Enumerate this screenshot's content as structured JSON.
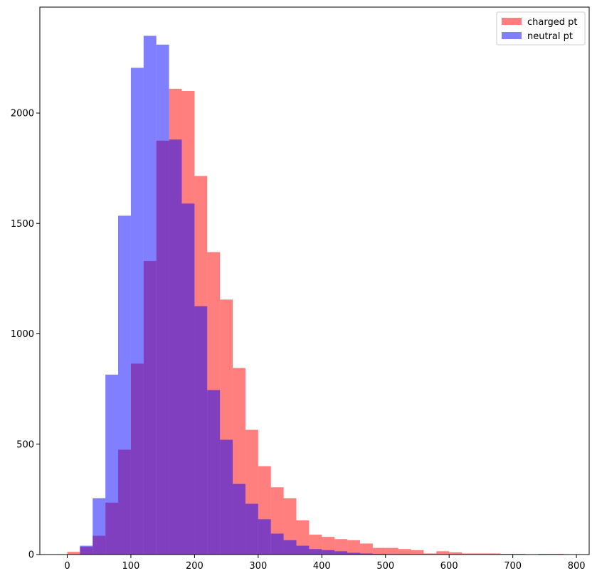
{
  "chart_data": {
    "type": "bar",
    "subtype": "overlaid-histogram",
    "title": "",
    "xlabel": "",
    "ylabel": "",
    "xlim": [
      -43,
      820
    ],
    "ylim": [
      0,
      2480
    ],
    "xticks": [
      0,
      100,
      200,
      300,
      400,
      500,
      600,
      700,
      800
    ],
    "yticks": [
      0,
      500,
      1000,
      1500,
      2000
    ],
    "grid": false,
    "legend_position": "upper right",
    "bin_width": 20,
    "series": [
      {
        "name": "charged pt",
        "color": "#ff8080",
        "bins": [
          {
            "x0": 0,
            "count": 12
          },
          {
            "x0": 20,
            "count": 35
          },
          {
            "x0": 40,
            "count": 85
          },
          {
            "x0": 60,
            "count": 235
          },
          {
            "x0": 80,
            "count": 475
          },
          {
            "x0": 100,
            "count": 865
          },
          {
            "x0": 120,
            "count": 1330
          },
          {
            "x0": 140,
            "count": 1875
          },
          {
            "x0": 160,
            "count": 2110
          },
          {
            "x0": 180,
            "count": 2100
          },
          {
            "x0": 200,
            "count": 1715
          },
          {
            "x0": 220,
            "count": 1370
          },
          {
            "x0": 240,
            "count": 1155
          },
          {
            "x0": 260,
            "count": 845
          },
          {
            "x0": 280,
            "count": 565
          },
          {
            "x0": 300,
            "count": 400
          },
          {
            "x0": 320,
            "count": 305
          },
          {
            "x0": 340,
            "count": 255
          },
          {
            "x0": 360,
            "count": 155
          },
          {
            "x0": 380,
            "count": 90
          },
          {
            "x0": 400,
            "count": 80
          },
          {
            "x0": 420,
            "count": 70
          },
          {
            "x0": 440,
            "count": 65
          },
          {
            "x0": 460,
            "count": 50
          },
          {
            "x0": 480,
            "count": 30
          },
          {
            "x0": 500,
            "count": 30
          },
          {
            "x0": 520,
            "count": 25
          },
          {
            "x0": 540,
            "count": 20
          },
          {
            "x0": 560,
            "count": 5
          },
          {
            "x0": 580,
            "count": 15
          },
          {
            "x0": 600,
            "count": 10
          },
          {
            "x0": 620,
            "count": 5
          },
          {
            "x0": 640,
            "count": 5
          },
          {
            "x0": 660,
            "count": 5
          },
          {
            "x0": 680,
            "count": 3
          },
          {
            "x0": 700,
            "count": 3
          },
          {
            "x0": 720,
            "count": 0
          },
          {
            "x0": 740,
            "count": 3
          },
          {
            "x0": 760,
            "count": 3
          }
        ]
      },
      {
        "name": "neutral pt",
        "color": "#8080ff",
        "bins": [
          {
            "x0": 0,
            "count": 0
          },
          {
            "x0": 20,
            "count": 40
          },
          {
            "x0": 40,
            "count": 255
          },
          {
            "x0": 60,
            "count": 815
          },
          {
            "x0": 80,
            "count": 1535
          },
          {
            "x0": 100,
            "count": 2205
          },
          {
            "x0": 120,
            "count": 2350
          },
          {
            "x0": 140,
            "count": 2310
          },
          {
            "x0": 160,
            "count": 1880
          },
          {
            "x0": 180,
            "count": 1590
          },
          {
            "x0": 200,
            "count": 1125
          },
          {
            "x0": 220,
            "count": 745
          },
          {
            "x0": 240,
            "count": 520
          },
          {
            "x0": 260,
            "count": 320
          },
          {
            "x0": 280,
            "count": 230
          },
          {
            "x0": 300,
            "count": 160
          },
          {
            "x0": 320,
            "count": 95
          },
          {
            "x0": 340,
            "count": 65
          },
          {
            "x0": 360,
            "count": 40
          },
          {
            "x0": 380,
            "count": 25
          },
          {
            "x0": 400,
            "count": 20
          },
          {
            "x0": 420,
            "count": 15
          },
          {
            "x0": 440,
            "count": 8
          },
          {
            "x0": 460,
            "count": 5
          },
          {
            "x0": 480,
            "count": 3
          },
          {
            "x0": 500,
            "count": 2
          },
          {
            "x0": 520,
            "count": 2
          },
          {
            "x0": 540,
            "count": 1
          },
          {
            "x0": 560,
            "count": 1
          },
          {
            "x0": 580,
            "count": 1
          }
        ]
      }
    ]
  }
}
